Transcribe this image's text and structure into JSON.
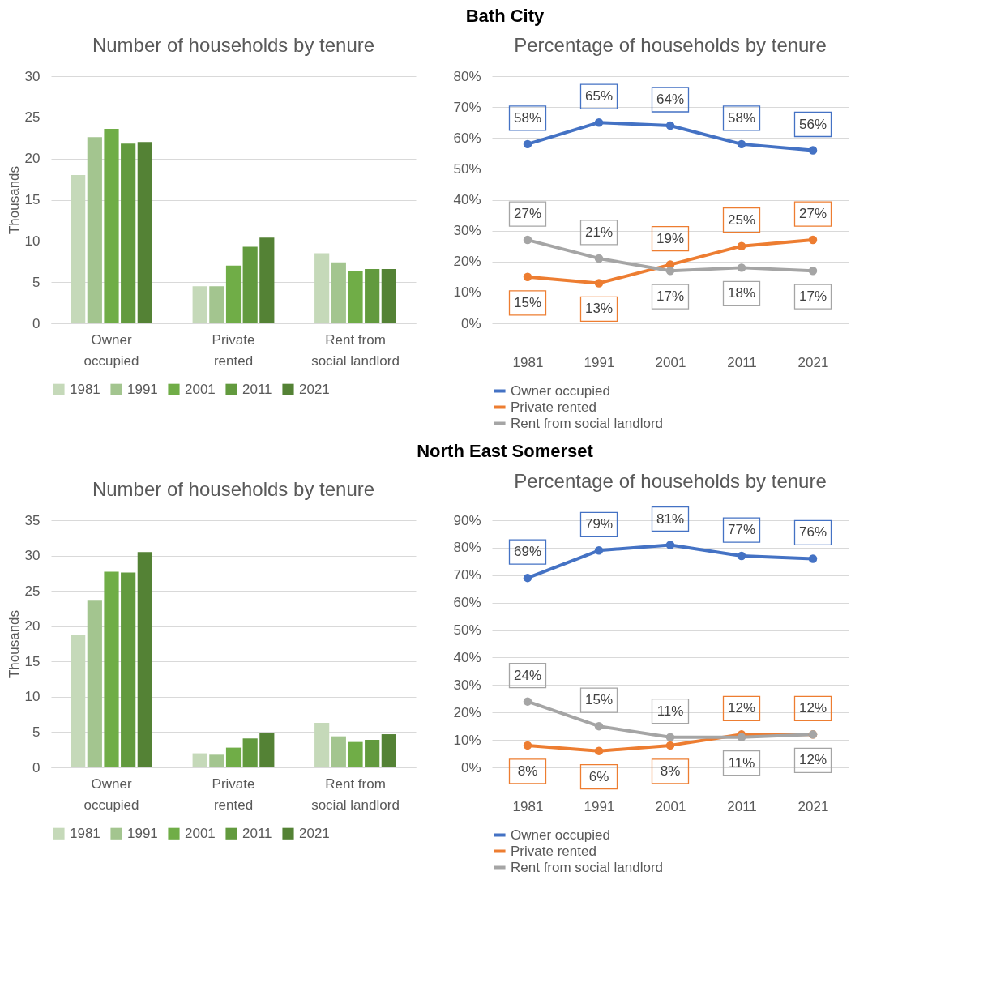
{
  "chart_data": [
    {
      "type": "bar",
      "title": "Number of households by tenure",
      "ylabel": "Thousands",
      "annotations": [
        "Bath City"
      ],
      "categories": [
        "Owner occupied",
        "Private rented",
        "Rent from social landlord"
      ],
      "series": [
        {
          "name": "1981",
          "color": "#c5d9b9",
          "values": [
            18.0,
            4.5,
            8.5
          ]
        },
        {
          "name": "1991",
          "color": "#a3c58f",
          "values": [
            22.6,
            4.5,
            7.4
          ]
        },
        {
          "name": "2001",
          "color": "#70ad47",
          "values": [
            23.6,
            7.0,
            6.4
          ]
        },
        {
          "name": "2011",
          "color": "#629a3e",
          "values": [
            21.8,
            9.3,
            6.6
          ]
        },
        {
          "name": "2021",
          "color": "#548235",
          "values": [
            22.0,
            10.4,
            6.6
          ]
        }
      ],
      "ylim": [
        0,
        30
      ],
      "yticks": [
        0,
        5,
        10,
        15,
        20,
        25,
        30
      ],
      "grid": "y",
      "legend": "bottom"
    },
    {
      "type": "line",
      "title": "Percentage of households by tenure",
      "categories": [
        "1981",
        "1991",
        "2001",
        "2011",
        "2021"
      ],
      "series": [
        {
          "name": "Owner occupied",
          "color": "#4472c4",
          "values": [
            58,
            65,
            64,
            58,
            56
          ],
          "value_labels": [
            "58%",
            "65%",
            "64%",
            "58%",
            "56%"
          ]
        },
        {
          "name": "Private rented",
          "color": "#ed7d31",
          "values": [
            15,
            13,
            19,
            25,
            27
          ],
          "value_labels": [
            "15%",
            "13%",
            "19%",
            "25%",
            "27%"
          ]
        },
        {
          "name": "Rent from social landlord",
          "color": "#a5a5a5",
          "values": [
            27,
            21,
            17,
            18,
            17
          ],
          "value_labels": [
            "27%",
            "21%",
            "17%",
            "18%",
            "17%"
          ]
        }
      ],
      "ylim": [
        0,
        80
      ],
      "yticks": [
        {
          "value": 0,
          "label": "0%"
        },
        {
          "value": 10,
          "label": "10%"
        },
        {
          "value": 20,
          "label": "20%"
        },
        {
          "value": 30,
          "label": "30%"
        },
        {
          "value": 40,
          "label": "40%"
        },
        {
          "value": 50,
          "label": "50%"
        },
        {
          "value": 60,
          "label": "60%"
        },
        {
          "value": 70,
          "label": "70%"
        },
        {
          "value": 80,
          "label": "80%"
        }
      ],
      "grid": "y",
      "legend": "bottom",
      "marker": "circle",
      "line_style": "solid"
    },
    {
      "type": "bar",
      "title": "Number of households by tenure",
      "ylabel": "Thousands",
      "annotations": [
        "North East Somerset"
      ],
      "categories": [
        "Owner occupied",
        "Private rented",
        "Rent from social landlord"
      ],
      "series": [
        {
          "name": "1981",
          "color": "#c5d9b9",
          "values": [
            18.7,
            2.0,
            6.3
          ]
        },
        {
          "name": "1991",
          "color": "#a3c58f",
          "values": [
            23.6,
            1.8,
            4.4
          ]
        },
        {
          "name": "2001",
          "color": "#70ad47",
          "values": [
            27.7,
            2.8,
            3.6
          ]
        },
        {
          "name": "2011",
          "color": "#629a3e",
          "values": [
            27.6,
            4.1,
            3.9
          ]
        },
        {
          "name": "2021",
          "color": "#548235",
          "values": [
            30.5,
            4.9,
            4.7
          ]
        }
      ],
      "ylim": [
        0,
        35
      ],
      "yticks": [
        0,
        5,
        10,
        15,
        20,
        25,
        30,
        35
      ],
      "grid": "y",
      "legend": "bottom"
    },
    {
      "type": "line",
      "title": "Percentage of households by tenure",
      "categories": [
        "1981",
        "1991",
        "2001",
        "2011",
        "2021"
      ],
      "series": [
        {
          "name": "Owner occupied",
          "color": "#4472c4",
          "values": [
            69,
            79,
            81,
            77,
            76
          ],
          "value_labels": [
            "69%",
            "79%",
            "81%",
            "77%",
            "76%"
          ]
        },
        {
          "name": "Private rented",
          "color": "#ed7d31",
          "values": [
            8,
            6,
            8,
            12,
            12
          ],
          "value_labels": [
            "8%",
            "6%",
            "8%",
            "12%",
            "12%"
          ]
        },
        {
          "name": "Rent from social landlord",
          "color": "#a5a5a5",
          "values": [
            24,
            15,
            11,
            11,
            12
          ],
          "value_labels": [
            "24%",
            "15%",
            "11%",
            "11%",
            "12%"
          ]
        }
      ],
      "ylim": [
        0,
        90
      ],
      "yticks": [
        {
          "value": 0,
          "label": "0%"
        },
        {
          "value": 10,
          "label": "10%"
        },
        {
          "value": 20,
          "label": "20%"
        },
        {
          "value": 30,
          "label": "30%"
        },
        {
          "value": 40,
          "label": "40%"
        },
        {
          "value": 50,
          "label": "50%"
        },
        {
          "value": 60,
          "label": "60%"
        },
        {
          "value": 70,
          "label": "70%"
        },
        {
          "value": 80,
          "label": "80%"
        },
        {
          "value": 90,
          "label": "90%"
        }
      ],
      "grid": "y",
      "legend": "bottom",
      "marker": "circle",
      "line_style": "solid"
    }
  ]
}
